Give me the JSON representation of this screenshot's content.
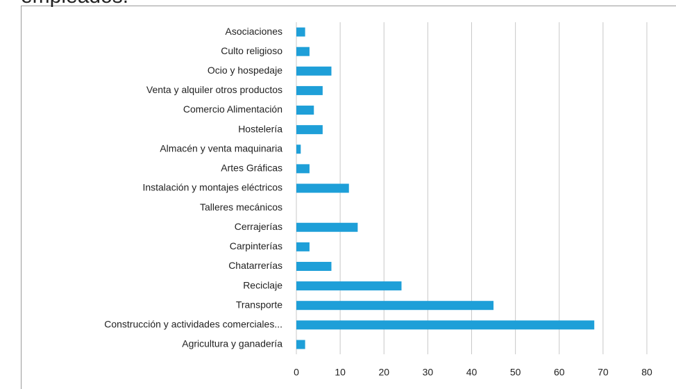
{
  "chart_data": {
    "type": "bar",
    "orientation": "horizontal",
    "title": "empleados.",
    "categories": [
      "Asociaciones",
      "Culto religioso",
      "Ocio y hospedaje",
      "Venta y alquiler otros productos",
      "Comercio Alimentación",
      "Hostelería",
      "Almacén y venta maquinaria",
      "Artes Gráficas",
      "Instalación y montajes eléctricos",
      "Talleres mecánicos",
      "Cerrajerías",
      "Carpinterías",
      "Chatarrerías",
      "Reciclaje",
      "Transporte",
      "Construcción y actividades comerciales...",
      "Agricultura y ganadería"
    ],
    "values": [
      2,
      3,
      8,
      6,
      4,
      6,
      1,
      3,
      12,
      0,
      14,
      3,
      8,
      24,
      45,
      68,
      2
    ],
    "color": "#1e9fd8",
    "xlim": [
      0,
      80
    ],
    "xticks": [
      0,
      10,
      20,
      30,
      40,
      50,
      60,
      70,
      80
    ],
    "grid": true
  }
}
